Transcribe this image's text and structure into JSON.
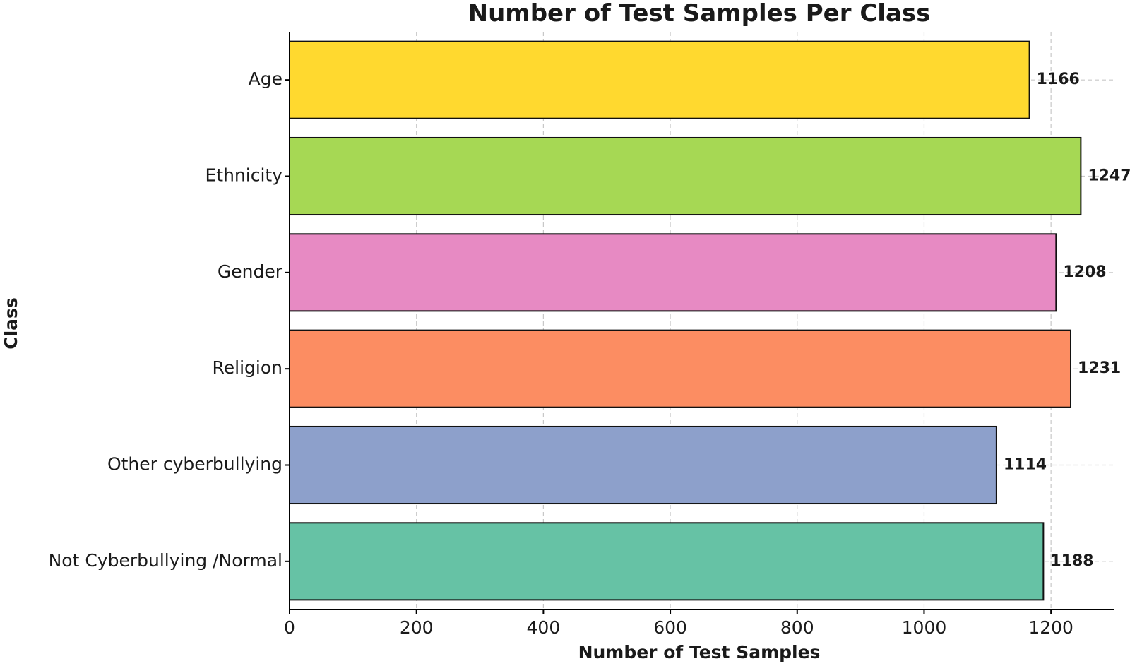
{
  "chart_data": {
    "type": "bar",
    "orientation": "horizontal",
    "title": "Number of Test Samples Per Class",
    "xlabel": "Number of Test Samples",
    "ylabel": "Class",
    "xlim": [
      0,
      1300
    ],
    "xticks": [
      0,
      200,
      400,
      600,
      800,
      1000,
      1200
    ],
    "grid": true,
    "categories": [
      "Age",
      "Ethnicity",
      "Gender",
      "Religion",
      "Other cyberbullying",
      "Not Cyberbullying /Normal"
    ],
    "values": [
      1166,
      1247,
      1208,
      1231,
      1114,
      1188
    ],
    "colors": [
      "#FFD92F",
      "#A6D854",
      "#E78AC3",
      "#FC8D62",
      "#8DA0CB",
      "#66C2A5"
    ]
  }
}
